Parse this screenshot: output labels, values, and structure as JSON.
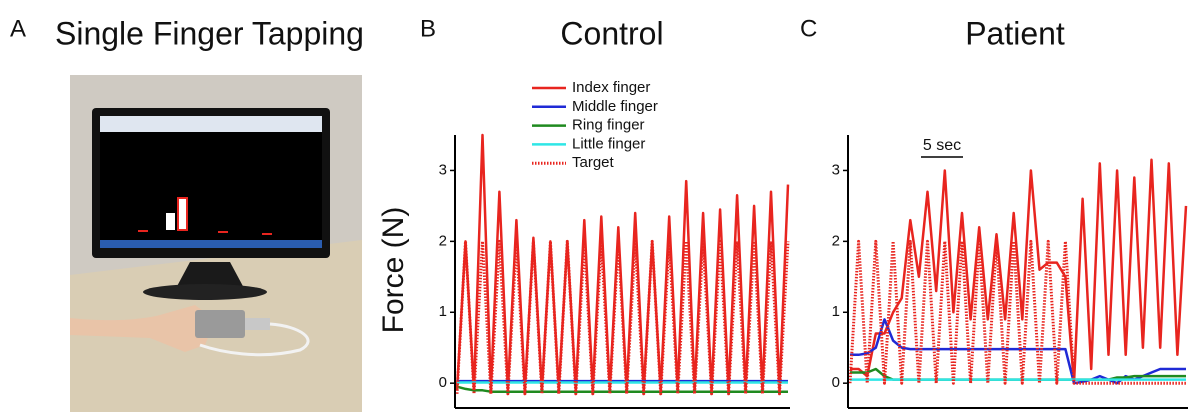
{
  "panel_a": {
    "label": "A",
    "title": "Single Finger Tapping"
  },
  "chart_data": [
    {
      "type": "line",
      "panel_label": "B",
      "title": "Control",
      "ylabel": "Force (N)",
      "legend": true,
      "ylim": [
        -0.35,
        3.5
      ],
      "yticks": [
        0,
        1,
        2,
        3
      ],
      "series": [
        {
          "name": "Index finger",
          "color": "#e8251f",
          "style": "solid",
          "values": [
            -0.1,
            2.0,
            -0.1,
            3.5,
            -0.1,
            2.7,
            -0.1,
            2.3,
            -0.1,
            2.05,
            -0.1,
            2.0,
            -0.1,
            2.0,
            -0.1,
            2.3,
            -0.1,
            2.35,
            -0.1,
            2.2,
            -0.1,
            2.4,
            -0.1,
            2.0,
            -0.1,
            2.35,
            -0.1,
            2.85,
            -0.1,
            2.4,
            -0.1,
            2.45,
            -0.1,
            2.65,
            -0.1,
            2.5,
            -0.1,
            2.7,
            -0.1,
            2.8
          ]
        },
        {
          "name": "Middle finger",
          "color": "#1f2ad6",
          "style": "solid",
          "values": [
            0.03,
            0.03,
            0.03,
            0.03,
            0.03,
            0.03,
            0.03,
            0.03,
            0.03,
            0.03,
            0.03,
            0.03,
            0.03,
            0.03,
            0.03,
            0.03,
            0.03,
            0.03,
            0.03,
            0.03,
            0.03,
            0.03,
            0.03,
            0.03,
            0.03,
            0.03,
            0.03,
            0.03,
            0.03,
            0.03,
            0.03,
            0.03,
            0.03,
            0.03,
            0.03,
            0.03,
            0.03,
            0.03,
            0.03,
            0.03
          ]
        },
        {
          "name": "Ring finger",
          "color": "#1f8a1f",
          "style": "solid",
          "values": [
            -0.05,
            -0.08,
            -0.1,
            -0.1,
            -0.12,
            -0.12,
            -0.12,
            -0.12,
            -0.12,
            -0.12,
            -0.12,
            -0.12,
            -0.12,
            -0.12,
            -0.12,
            -0.12,
            -0.12,
            -0.12,
            -0.12,
            -0.12,
            -0.12,
            -0.12,
            -0.12,
            -0.12,
            -0.12,
            -0.12,
            -0.12,
            -0.12,
            -0.12,
            -0.12,
            -0.12,
            -0.12,
            -0.12,
            -0.12,
            -0.12,
            -0.12,
            -0.12,
            -0.12,
            -0.12,
            -0.12
          ]
        },
        {
          "name": "Little finger",
          "color": "#2fe6e6",
          "style": "solid",
          "values": [
            0.01,
            0.01,
            0.01,
            0.01,
            0.01,
            0.01,
            0.01,
            0.01,
            0.01,
            0.01,
            0.01,
            0.01,
            0.01,
            0.01,
            0.01,
            0.01,
            0.01,
            0.01,
            0.01,
            0.01,
            0.01,
            0.01,
            0.01,
            0.01,
            0.01,
            0.01,
            0.01,
            0.01,
            0.01,
            0.01,
            0.01,
            0.01,
            0.01,
            0.01,
            0.01,
            0.01,
            0.01,
            0.01,
            0.01,
            0.01
          ]
        },
        {
          "name": "Target",
          "color": "#e8251f",
          "style": "dotted",
          "values": [
            -0.15,
            2,
            -0.15,
            2,
            -0.15,
            2,
            -0.15,
            2,
            -0.15,
            2,
            -0.15,
            2,
            -0.15,
            2,
            -0.15,
            2,
            -0.15,
            2,
            -0.15,
            2,
            -0.15,
            2,
            -0.15,
            2,
            -0.15,
            2,
            -0.15,
            2,
            -0.15,
            2,
            -0.15,
            2,
            -0.15,
            2,
            -0.15,
            2,
            -0.15,
            2,
            -0.15,
            2
          ]
        }
      ]
    },
    {
      "type": "line",
      "panel_label": "C",
      "title": "Patient",
      "legend": false,
      "annotation": "5 sec",
      "ylim": [
        -0.35,
        3.5
      ],
      "yticks": [
        0,
        1,
        2,
        3
      ],
      "series": [
        {
          "name": "Index finger",
          "color": "#e8251f",
          "style": "solid",
          "values": [
            0.2,
            0.2,
            0.1,
            0.7,
            0.7,
            1.0,
            1.2,
            2.3,
            1.5,
            2.7,
            1.3,
            3.0,
            1.0,
            2.4,
            0.9,
            2.2,
            0.9,
            2.1,
            0.9,
            2.4,
            0.9,
            3.0,
            1.6,
            1.7,
            1.7,
            1.5,
            0.0,
            2.6,
            0.2,
            3.1,
            0.4,
            3.0,
            0.4,
            2.9,
            0.5,
            3.15,
            0.5,
            3.1,
            0.4,
            2.5
          ]
        },
        {
          "name": "Middle finger",
          "color": "#1f2ad6",
          "style": "solid",
          "values": [
            0.4,
            0.4,
            0.42,
            0.5,
            0.9,
            0.6,
            0.5,
            0.48,
            0.48,
            0.48,
            0.48,
            0.48,
            0.48,
            0.48,
            0.48,
            0.48,
            0.48,
            0.48,
            0.48,
            0.48,
            0.48,
            0.48,
            0.48,
            0.48,
            0.48,
            0.48,
            0.0,
            0.02,
            0.05,
            0.1,
            0.05,
            0.0,
            0.1,
            0.05,
            0.1,
            0.15,
            0.2,
            0.2,
            0.2,
            0.2
          ]
        },
        {
          "name": "Ring finger",
          "color": "#1f8a1f",
          "style": "solid",
          "values": [
            0.15,
            0.15,
            0.15,
            0.2,
            0.1,
            0.05,
            0.05,
            0.05,
            0.05,
            0.05,
            0.05,
            0.05,
            0.05,
            0.05,
            0.05,
            0.05,
            0.05,
            0.05,
            0.05,
            0.05,
            0.05,
            0.05,
            0.05,
            0.05,
            0.05,
            0.05,
            0.05,
            0.05,
            0.05,
            0.05,
            0.05,
            0.08,
            0.08,
            0.1,
            0.1,
            0.1,
            0.1,
            0.1,
            0.1,
            0.1
          ]
        },
        {
          "name": "Little finger",
          "color": "#2fe6e6",
          "style": "solid",
          "values": [
            0.05,
            0.05,
            0.05,
            0.05,
            0.05,
            0.05,
            0.05,
            0.05,
            0.05,
            0.05,
            0.05,
            0.05,
            0.05,
            0.05,
            0.05,
            0.05,
            0.05,
            0.05,
            0.05,
            0.05,
            0.05,
            0.05,
            0.05,
            0.05,
            0.05,
            0.05,
            0.05,
            0.05,
            0.05,
            0.05,
            0.05,
            0.05,
            0.05,
            0.05,
            0.05,
            0.05,
            0.05,
            0.05,
            0.05,
            0.05
          ]
        },
        {
          "name": "Target",
          "color": "#e8251f",
          "style": "dotted",
          "values": [
            0,
            2,
            0,
            2,
            0,
            2,
            0,
            2,
            0,
            2,
            0,
            2,
            0,
            2,
            0,
            2,
            0,
            2,
            0,
            2,
            0,
            2,
            0,
            2,
            0,
            2,
            0,
            0,
            0,
            0,
            0,
            0,
            0,
            0,
            0,
            0,
            0,
            0,
            0,
            0
          ]
        }
      ]
    }
  ]
}
